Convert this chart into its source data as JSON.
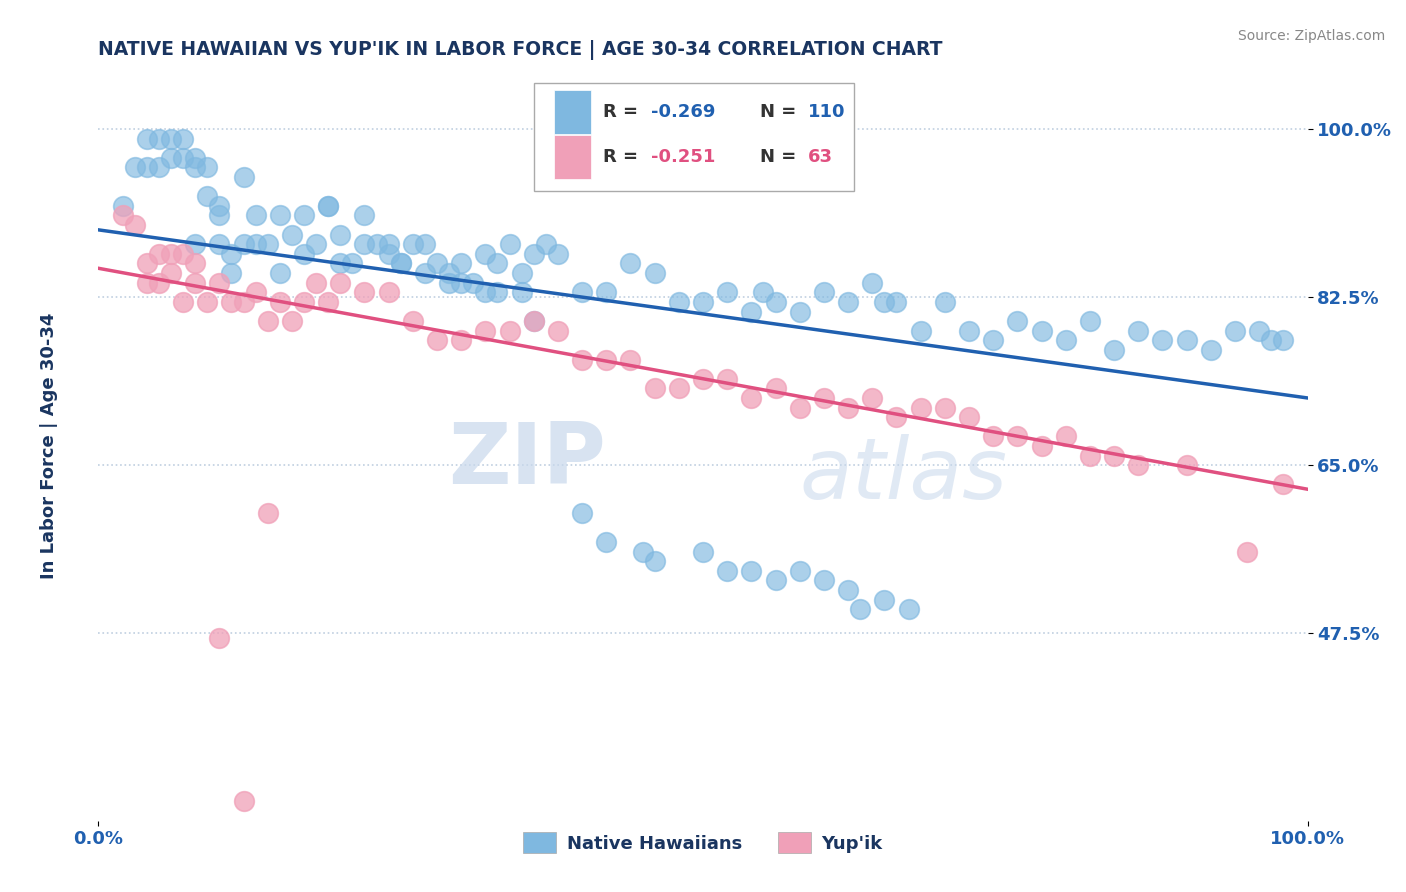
{
  "title": "NATIVE HAWAIIAN VS YUP'IK IN LABOR FORCE | AGE 30-34 CORRELATION CHART",
  "source_text": "Source: ZipAtlas.com",
  "ylabel": "In Labor Force | Age 30-34",
  "xlim": [
    0.0,
    1.0
  ],
  "ylim": [
    0.28,
    1.06
  ],
  "x_tick_labels": [
    "0.0%",
    "100.0%"
  ],
  "y_tick_labels": [
    "100.0%",
    "82.5%",
    "65.0%",
    "47.5%"
  ],
  "y_tick_values": [
    1.0,
    0.825,
    0.65,
    0.475
  ],
  "watermark_zip": "ZIP",
  "watermark_atlas": "atlas",
  "legend_r1": "-0.269",
  "legend_n1": "110",
  "legend_r2": "-0.251",
  "legend_n2": "63",
  "blue_color": "#7fb8e0",
  "pink_color": "#f0a0b8",
  "blue_line_color": "#2060b0",
  "pink_line_color": "#e05080",
  "title_color": "#1a3560",
  "tick_color": "#2060b0",
  "grid_color": "#c0cfe0",
  "background_color": "#ffffff",
  "blue_trend_x0": 0.0,
  "blue_trend_y0": 0.895,
  "blue_trend_x1": 1.0,
  "blue_trend_y1": 0.72,
  "pink_trend_x0": 0.0,
  "pink_trend_y0": 0.855,
  "pink_trend_x1": 1.0,
  "pink_trend_y1": 0.625,
  "blue_x": [
    0.02,
    0.03,
    0.04,
    0.04,
    0.05,
    0.05,
    0.06,
    0.06,
    0.07,
    0.07,
    0.08,
    0.08,
    0.09,
    0.09,
    0.1,
    0.1,
    0.11,
    0.11,
    0.12,
    0.13,
    0.14,
    0.15,
    0.16,
    0.17,
    0.18,
    0.19,
    0.2,
    0.21,
    0.22,
    0.23,
    0.24,
    0.25,
    0.26,
    0.27,
    0.28,
    0.29,
    0.3,
    0.31,
    0.32,
    0.33,
    0.34,
    0.35,
    0.36,
    0.37,
    0.38,
    0.4,
    0.42,
    0.44,
    0.46,
    0.48,
    0.5,
    0.52,
    0.54,
    0.55,
    0.56,
    0.58,
    0.6,
    0.62,
    0.64,
    0.65,
    0.66,
    0.68,
    0.7,
    0.72,
    0.74,
    0.76,
    0.78,
    0.8,
    0.82,
    0.84,
    0.86,
    0.88,
    0.9,
    0.92,
    0.94,
    0.96,
    0.97,
    0.98,
    0.08,
    0.1,
    0.12,
    0.13,
    0.15,
    0.17,
    0.19,
    0.2,
    0.22,
    0.24,
    0.25,
    0.27,
    0.29,
    0.3,
    0.32,
    0.33,
    0.35,
    0.36,
    0.4,
    0.42,
    0.45,
    0.46,
    0.5,
    0.52,
    0.54,
    0.56,
    0.58,
    0.6,
    0.62,
    0.63,
    0.65,
    0.67
  ],
  "blue_y": [
    0.92,
    0.96,
    0.99,
    0.96,
    0.99,
    0.96,
    0.99,
    0.97,
    0.99,
    0.97,
    0.96,
    0.88,
    0.96,
    0.93,
    0.91,
    0.88,
    0.87,
    0.85,
    0.88,
    0.88,
    0.88,
    0.85,
    0.89,
    0.87,
    0.88,
    0.92,
    0.86,
    0.86,
    0.88,
    0.88,
    0.87,
    0.86,
    0.88,
    0.88,
    0.86,
    0.84,
    0.86,
    0.84,
    0.87,
    0.86,
    0.88,
    0.85,
    0.87,
    0.88,
    0.87,
    0.83,
    0.83,
    0.86,
    0.85,
    0.82,
    0.82,
    0.83,
    0.81,
    0.83,
    0.82,
    0.81,
    0.83,
    0.82,
    0.84,
    0.82,
    0.82,
    0.79,
    0.82,
    0.79,
    0.78,
    0.8,
    0.79,
    0.78,
    0.8,
    0.77,
    0.79,
    0.78,
    0.78,
    0.77,
    0.79,
    0.79,
    0.78,
    0.78,
    0.97,
    0.92,
    0.95,
    0.91,
    0.91,
    0.91,
    0.92,
    0.89,
    0.91,
    0.88,
    0.86,
    0.85,
    0.85,
    0.84,
    0.83,
    0.83,
    0.83,
    0.8,
    0.6,
    0.57,
    0.56,
    0.55,
    0.56,
    0.54,
    0.54,
    0.53,
    0.54,
    0.53,
    0.52,
    0.5,
    0.51,
    0.5
  ],
  "pink_x": [
    0.02,
    0.03,
    0.04,
    0.04,
    0.05,
    0.05,
    0.06,
    0.06,
    0.07,
    0.07,
    0.08,
    0.08,
    0.09,
    0.1,
    0.11,
    0.12,
    0.13,
    0.14,
    0.15,
    0.16,
    0.17,
    0.18,
    0.19,
    0.2,
    0.22,
    0.24,
    0.26,
    0.28,
    0.3,
    0.32,
    0.34,
    0.36,
    0.38,
    0.4,
    0.42,
    0.44,
    0.46,
    0.48,
    0.5,
    0.52,
    0.54,
    0.56,
    0.58,
    0.6,
    0.62,
    0.64,
    0.66,
    0.68,
    0.7,
    0.72,
    0.74,
    0.76,
    0.78,
    0.8,
    0.82,
    0.84,
    0.86,
    0.9,
    0.95,
    0.98,
    0.1,
    0.12,
    0.14
  ],
  "pink_y": [
    0.91,
    0.9,
    0.86,
    0.84,
    0.87,
    0.84,
    0.87,
    0.85,
    0.87,
    0.82,
    0.86,
    0.84,
    0.82,
    0.84,
    0.82,
    0.82,
    0.83,
    0.8,
    0.82,
    0.8,
    0.82,
    0.84,
    0.82,
    0.84,
    0.83,
    0.83,
    0.8,
    0.78,
    0.78,
    0.79,
    0.79,
    0.8,
    0.79,
    0.76,
    0.76,
    0.76,
    0.73,
    0.73,
    0.74,
    0.74,
    0.72,
    0.73,
    0.71,
    0.72,
    0.71,
    0.72,
    0.7,
    0.71,
    0.71,
    0.7,
    0.68,
    0.68,
    0.67,
    0.68,
    0.66,
    0.66,
    0.65,
    0.65,
    0.56,
    0.63,
    0.47,
    0.3,
    0.6
  ]
}
